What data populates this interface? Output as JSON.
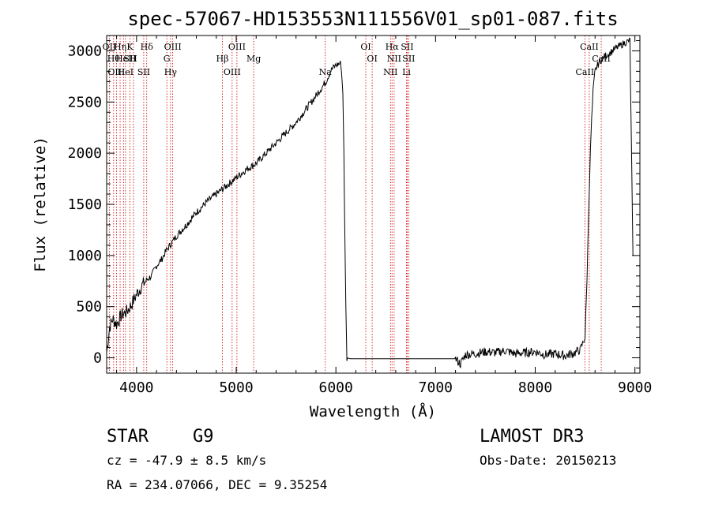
{
  "chart_data": {
    "type": "line",
    "title": "spec-57067-HD153553N111556V01_sp01-087.fits",
    "xlabel": "Wavelength (Å)",
    "ylabel": "Flux (relative)",
    "xlim": [
      3700,
      9050
    ],
    "ylim": [
      -150,
      3150
    ],
    "x_ticks": [
      "4000",
      "5000",
      "6000",
      "7000",
      "8000",
      "9000"
    ],
    "y_ticks": [
      "0",
      "500",
      "1000",
      "1500",
      "2000",
      "2500",
      "3000"
    ],
    "line_color": "#cc0000",
    "series": [
      {
        "x": [
          3700,
          3730,
          3760,
          3800,
          3850,
          3900,
          3950,
          4000,
          4050,
          4100,
          4150,
          4200,
          4250,
          4300,
          4350,
          4400,
          4500,
          4600,
          4700,
          4800,
          4900,
          5000,
          5100,
          5200,
          5300,
          5400,
          5500,
          5600,
          5700,
          5800,
          5900,
          5950,
          6000,
          6050,
          6070,
          6080,
          6090,
          6100,
          6110,
          6150,
          6200,
          6300,
          6400,
          6500,
          6600,
          6700,
          6800,
          6900,
          7000,
          7100,
          7200,
          7250,
          7300,
          7400,
          7500,
          7600,
          7700,
          7800,
          7900,
          8000,
          8100,
          8200,
          8300,
          8400,
          8450,
          8500,
          8520,
          8540,
          8560,
          8580,
          8600,
          8620,
          8650,
          8700,
          8750,
          8800,
          8850,
          8900,
          8950,
          8980
        ],
        "y": [
          50,
          300,
          380,
          330,
          420,
          450,
          520,
          620,
          700,
          760,
          800,
          900,
          960,
          1050,
          1120,
          1190,
          1300,
          1420,
          1520,
          1600,
          1680,
          1760,
          1840,
          1900,
          2000,
          2100,
          2200,
          2300,
          2430,
          2560,
          2700,
          2810,
          2860,
          2880,
          2600,
          2000,
          1200,
          500,
          0,
          -10,
          -10,
          -10,
          -10,
          -10,
          -10,
          -10,
          -10,
          -10,
          -10,
          -10,
          -10,
          -60,
          30,
          40,
          60,
          50,
          70,
          40,
          50,
          60,
          30,
          40,
          20,
          50,
          80,
          200,
          800,
          1600,
          2200,
          2600,
          2800,
          2850,
          2900,
          2950,
          2980,
          3020,
          3050,
          3080,
          3100,
          1000
        ]
      }
    ],
    "lines": [
      {
        "x": 3727,
        "labels": [
          "OII"
        ]
      },
      {
        "x": 3770,
        "labels": [
          "Hθ"
        ]
      },
      {
        "x": 3798,
        "labels": [
          "OIII"
        ]
      },
      {
        "x": 3835,
        "labels": [
          "Hη"
        ]
      },
      {
        "x": 3869,
        "labels": [
          "HeI"
        ]
      },
      {
        "x": 3889,
        "labels": [
          "HeI"
        ]
      },
      {
        "x": 3934,
        "labels": [
          "K",
          "SII"
        ]
      },
      {
        "x": 3969,
        "labels": [
          "H"
        ]
      },
      {
        "x": 4072,
        "labels": [
          "SII"
        ]
      },
      {
        "x": 4102,
        "labels": [
          "Hδ"
        ]
      },
      {
        "x": 4304,
        "labels": [
          "G"
        ]
      },
      {
        "x": 4341,
        "labels": [
          "Hγ"
        ]
      },
      {
        "x": 4363,
        "labels": [
          "OIII"
        ]
      },
      {
        "x": 4861,
        "labels": [
          "Hβ"
        ]
      },
      {
        "x": 4959,
        "labels": [
          "OIII"
        ]
      },
      {
        "x": 5007,
        "labels": [
          "OIII"
        ]
      },
      {
        "x": 5175,
        "labels": [
          "Mg"
        ]
      },
      {
        "x": 5893,
        "labels": [
          "Na"
        ]
      },
      {
        "x": 6300,
        "labels": [
          "OI"
        ]
      },
      {
        "x": 6364,
        "labels": [
          "OI"
        ]
      },
      {
        "x": 6548,
        "labels": [
          "NII"
        ]
      },
      {
        "x": 6563,
        "labels": [
          "Hα"
        ]
      },
      {
        "x": 6584,
        "labels": [
          "NII"
        ]
      },
      {
        "x": 6708,
        "labels": [
          "Li"
        ]
      },
      {
        "x": 6716,
        "labels": [
          "SII"
        ]
      },
      {
        "x": 6731,
        "labels": [
          "SII"
        ]
      },
      {
        "x": 8498,
        "labels": [
          "CaII"
        ]
      },
      {
        "x": 8542,
        "labels": [
          "CaII"
        ]
      },
      {
        "x": 8662,
        "labels": [
          "CaII"
        ]
      }
    ]
  },
  "info": {
    "class": "STAR",
    "subclass": "G9",
    "survey": "LAMOST DR3",
    "cz": "cz = -47.9 ± 8.5 km/s",
    "obs_date": "Obs-Date: 20150213",
    "radec": "RA = 234.07066, DEC =   9.35254"
  }
}
